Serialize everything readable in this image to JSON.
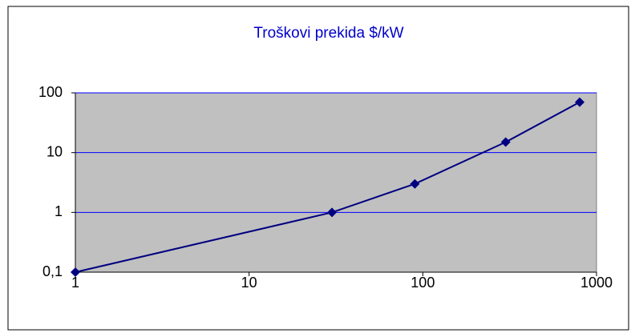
{
  "chart_data": {
    "type": "line",
    "title": "Troškovi prekida $/kW",
    "x": [
      1,
      30,
      90,
      300,
      800
    ],
    "series": [
      {
        "color": "#000080",
        "values": [
          0.1,
          1,
          3,
          15,
          70
        ]
      }
    ],
    "xlim": [
      1,
      1000
    ],
    "xticks": [
      1,
      10,
      100,
      1000
    ],
    "ylim": [
      0.1,
      100
    ],
    "yticks": [
      {
        "value": 0.1,
        "label": "0,1"
      },
      1,
      10,
      100
    ],
    "xscale": "log",
    "yscale": "log",
    "grid": true
  }
}
